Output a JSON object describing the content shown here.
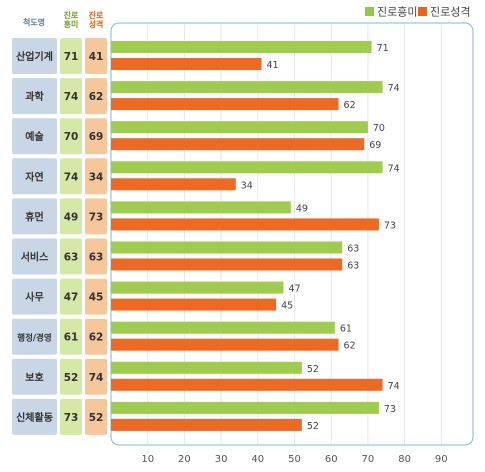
{
  "legend": [
    {
      "label": "진로흥미",
      "color": "#93c94a"
    },
    {
      "label": "진로성격",
      "color": "#e8641e"
    }
  ],
  "table": {
    "header_scale": "척도명",
    "header_interest": "진로\n흥미",
    "header_personality": "진로\n성격"
  },
  "colors": {
    "interest": "#9fcb4e",
    "personality": "#ec6a24",
    "panel_border": "#7fb8de",
    "scale_cell": "#c9d6e6",
    "interest_cell": "#d6e8a8",
    "personality_cell": "#f6c79a",
    "header_text": "#5b7fa6"
  },
  "chart_data": {
    "type": "bar",
    "orientation": "horizontal",
    "categories": [
      "산업기계",
      "과학",
      "예술",
      "자연",
      "휴먼",
      "서비스",
      "사무",
      "행정/경영",
      "보호",
      "신체활동"
    ],
    "series": [
      {
        "name": "진로흥미",
        "values": [
          71,
          74,
          70,
          74,
          49,
          63,
          47,
          61,
          52,
          73
        ]
      },
      {
        "name": "진로성격",
        "values": [
          41,
          62,
          69,
          34,
          73,
          63,
          45,
          62,
          74,
          52
        ]
      }
    ],
    "xlim": [
      0,
      100
    ],
    "xticks": [
      10,
      20,
      30,
      40,
      50,
      60,
      70,
      80,
      90
    ],
    "grid": true,
    "legend_position": "top-right"
  }
}
